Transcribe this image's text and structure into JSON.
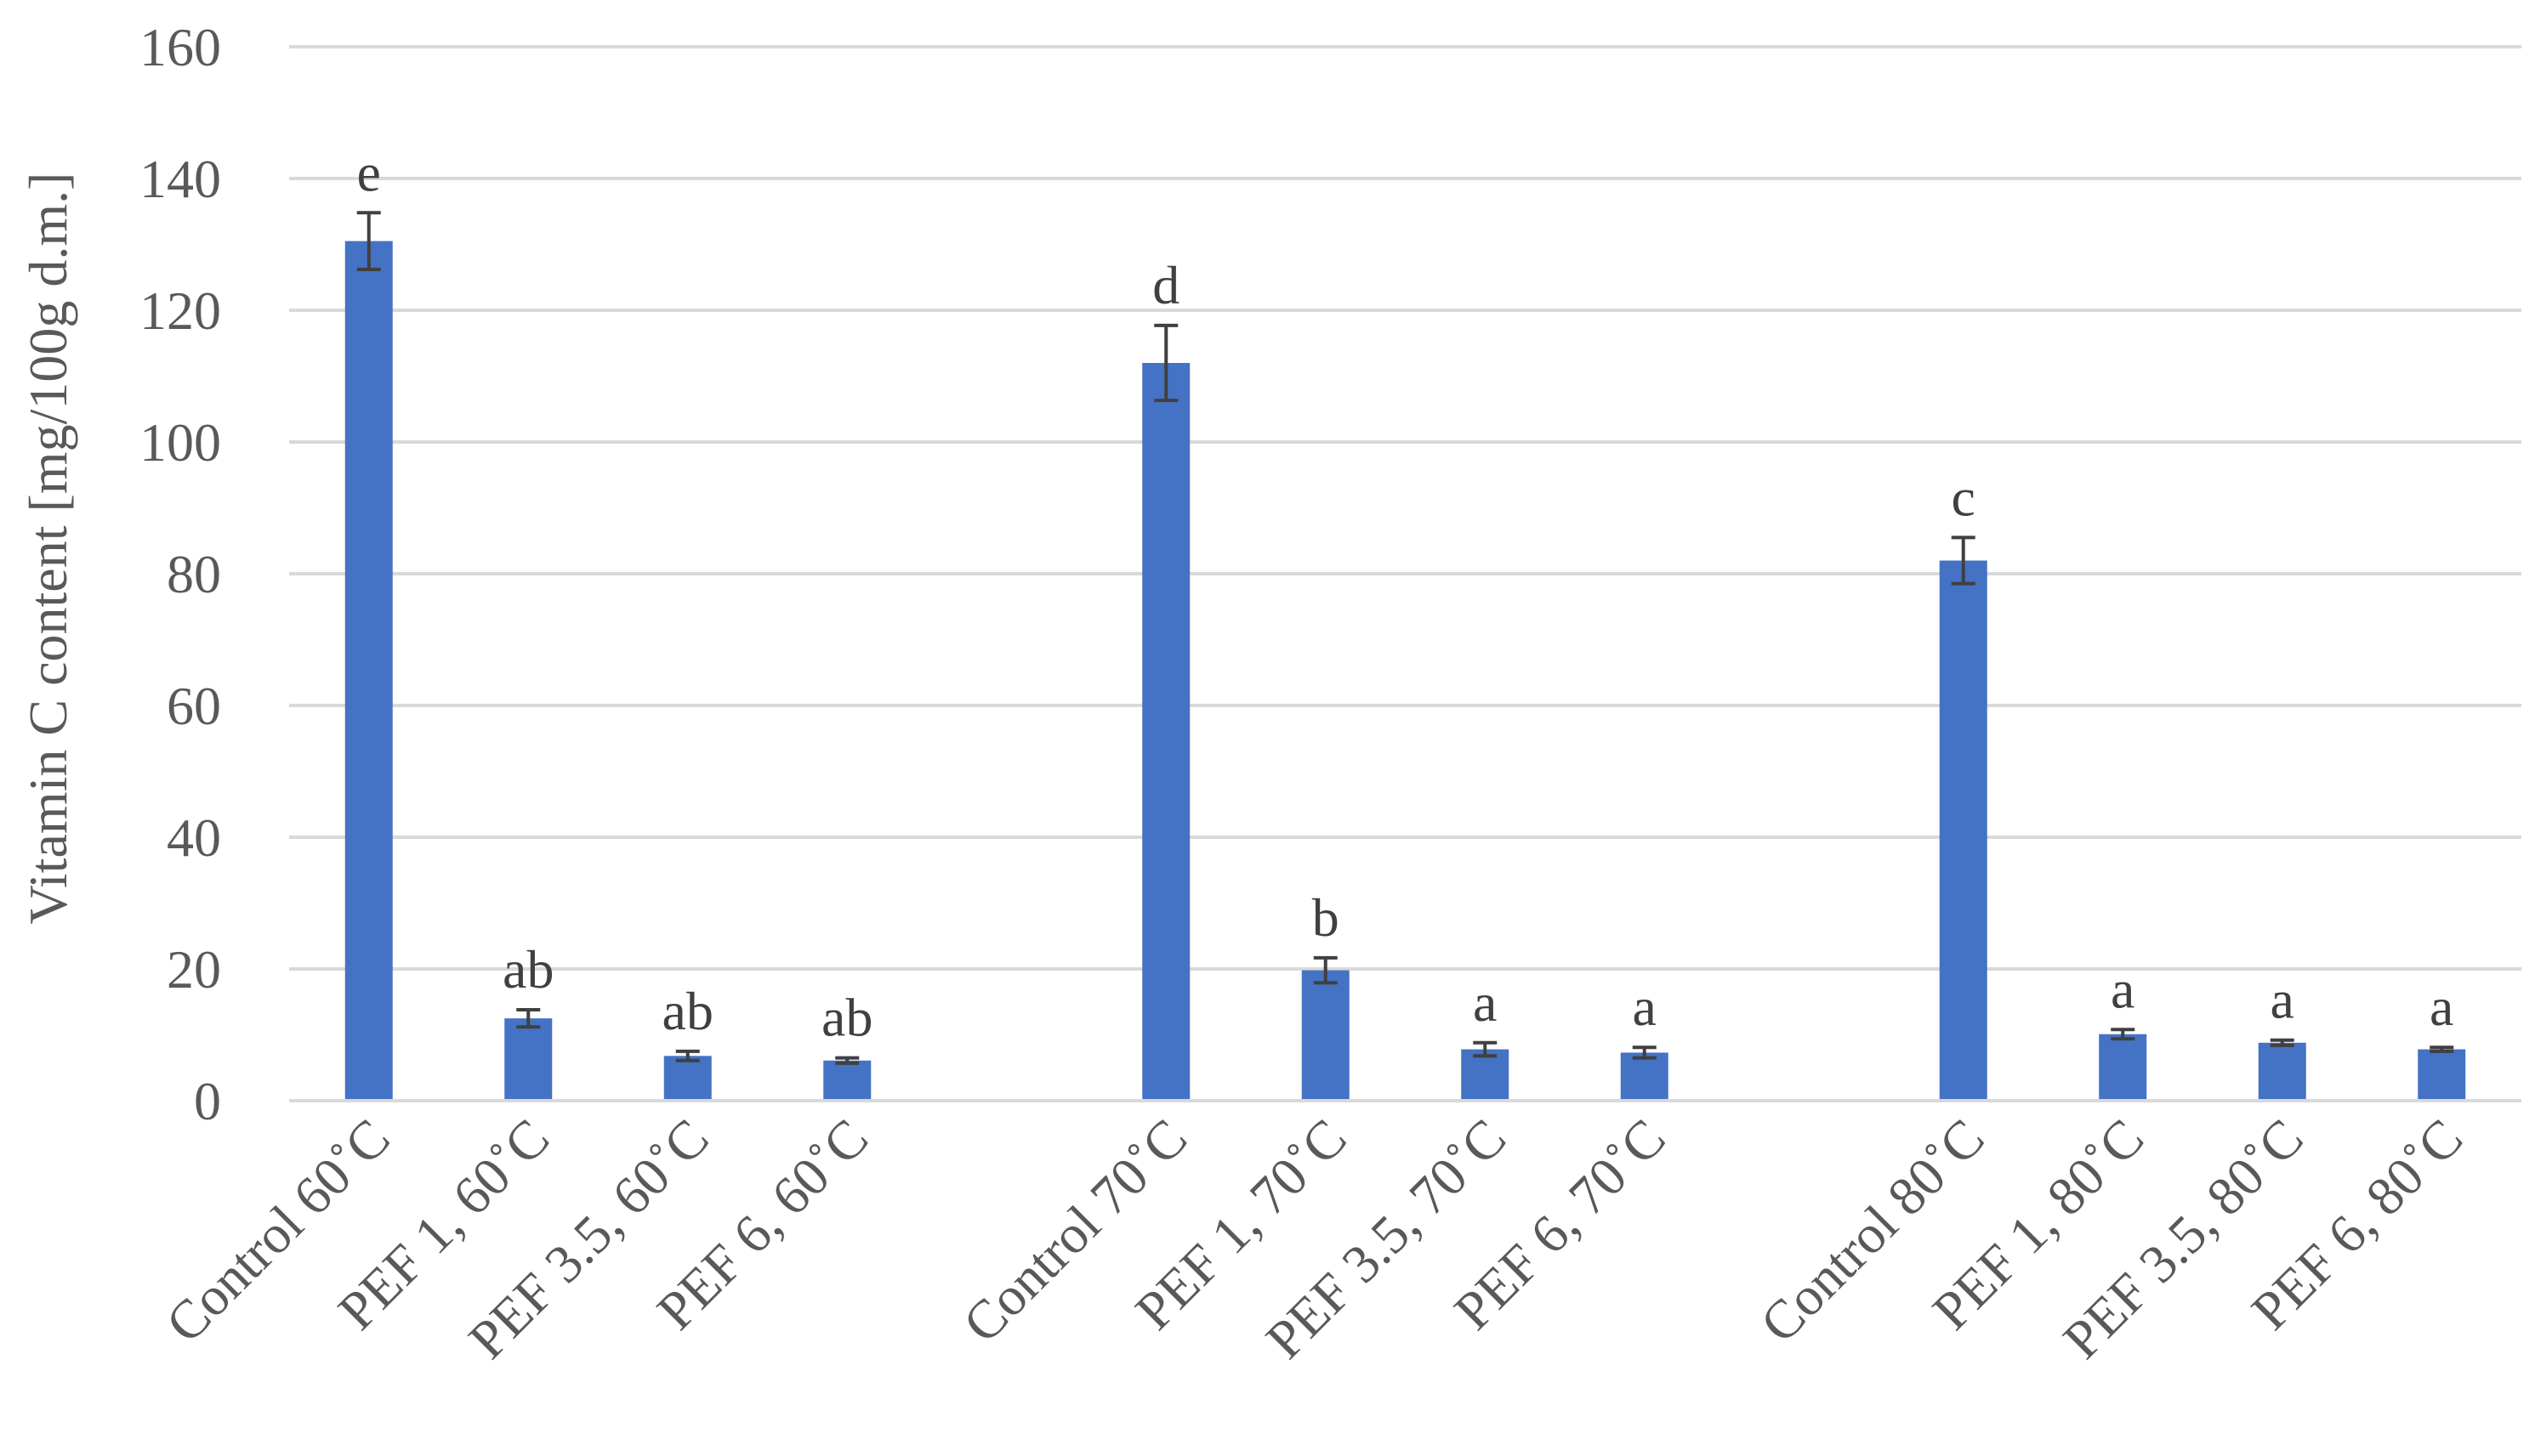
{
  "chart_data": {
    "type": "bar",
    "ylabel": "Vitamin C content  [mg/100g d.m.]",
    "ylim": [
      0,
      160
    ],
    "yticks": [
      0,
      20,
      40,
      60,
      80,
      100,
      120,
      140,
      160
    ],
    "grid": true,
    "categories": [
      "Control 60˚C",
      "PEF 1, 60˚C",
      "PEF 3.5, 60˚C",
      "PEF 6, 60˚C",
      "Control 70˚C",
      "PEF 1, 70˚C",
      "PEF 3.5, 70˚C",
      "PEF 6, 70˚C",
      "Control 80˚C",
      "PEF 1, 80˚C",
      "PEF 3.5, 80˚C",
      "PEF 6, 80˚C"
    ],
    "groups": [
      [
        0,
        1,
        2,
        3
      ],
      [
        4,
        5,
        6,
        7
      ],
      [
        8,
        9,
        10,
        11
      ]
    ],
    "values": [
      130.5,
      12.5,
      6.8,
      6.1,
      112,
      19.8,
      7.8,
      7.3,
      82,
      10.1,
      8.8,
      7.8
    ],
    "errors": [
      4.3,
      1.3,
      0.7,
      0.4,
      5.7,
      1.9,
      1.0,
      0.8,
      3.5,
      0.7,
      0.4,
      0.3
    ],
    "significance_letters": [
      "e",
      "ab",
      "ab",
      "ab",
      "d",
      "b",
      "a",
      "a",
      "c",
      "a",
      "a",
      "a"
    ],
    "bar_color": "#4472c4"
  }
}
